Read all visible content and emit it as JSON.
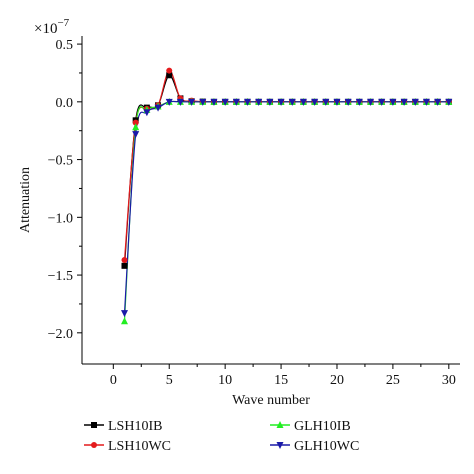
{
  "chart_data": {
    "type": "line",
    "xlabel": "Wave number",
    "ylabel": "Attenuation",
    "y_multiplier_label": "×10",
    "y_multiplier_exp": "−7",
    "xlim": [
      -2.8,
      31
    ],
    "ylim": [
      -2.27,
      0.57
    ],
    "xticks": [
      0,
      5,
      10,
      15,
      20,
      25,
      30
    ],
    "yticks": [
      -2.0,
      -1.5,
      -1.0,
      -0.5,
      0.0,
      0.5
    ],
    "ytick_labels": [
      "−2.0",
      "−1.5",
      "−1.0",
      "−0.5",
      "0.0",
      "0.5"
    ],
    "xtick_labels": [
      "0",
      "5",
      "10",
      "15",
      "20",
      "25",
      "30"
    ],
    "grid": false,
    "legend_position": "bottom",
    "series": [
      {
        "name": "LSH10IB",
        "color": "#000000",
        "marker": "square",
        "x": [
          1,
          2,
          3,
          4,
          5,
          6,
          7,
          8,
          9,
          10,
          11,
          12,
          13,
          14,
          15,
          16,
          17,
          18,
          19,
          20,
          21,
          22,
          23,
          24,
          25,
          26,
          27,
          28,
          29,
          30
        ],
        "y": [
          -1.42,
          -0.16,
          -0.05,
          -0.03,
          0.23,
          0.03,
          0.005,
          0.002,
          0,
          0,
          0,
          0,
          0,
          0,
          0,
          0,
          0,
          0,
          0,
          0,
          0,
          0,
          0,
          0,
          0,
          0,
          0,
          0,
          0,
          0
        ]
      },
      {
        "name": "LSH10WC",
        "color": "#e41a1c",
        "marker": "circle",
        "x": [
          1,
          2,
          3,
          4,
          5,
          6,
          7,
          8,
          9,
          10,
          11,
          12,
          13,
          14,
          15,
          16,
          17,
          18,
          19,
          20,
          21,
          22,
          23,
          24,
          25,
          26,
          27,
          28,
          29,
          30
        ],
        "y": [
          -1.37,
          -0.18,
          -0.06,
          -0.03,
          0.27,
          0.03,
          0.01,
          0.002,
          0,
          0,
          0,
          0,
          0,
          0,
          0,
          0,
          0,
          0,
          0,
          0,
          0,
          0,
          0,
          0,
          0,
          0,
          0,
          0,
          0,
          0
        ]
      },
      {
        "name": "GLH10IB",
        "color": "#22ee22",
        "marker": "triangle-up",
        "x": [
          1,
          2,
          3,
          4,
          5,
          6,
          7,
          8,
          9,
          10,
          11,
          12,
          13,
          14,
          15,
          16,
          17,
          18,
          19,
          20,
          21,
          22,
          23,
          24,
          25,
          26,
          27,
          28,
          29,
          30
        ],
        "y": [
          -1.9,
          -0.22,
          -0.07,
          -0.04,
          0.0,
          0.0,
          0,
          0,
          0,
          0,
          0,
          0,
          0,
          0,
          0,
          0,
          0,
          0,
          0,
          0,
          0,
          0,
          0,
          0,
          0,
          0,
          0,
          0,
          0,
          0
        ]
      },
      {
        "name": "GLH10WC",
        "color": "#1a1aa8",
        "marker": "triangle-down",
        "x": [
          1,
          2,
          3,
          4,
          5,
          6,
          7,
          8,
          9,
          10,
          11,
          12,
          13,
          14,
          15,
          16,
          17,
          18,
          19,
          20,
          21,
          22,
          23,
          24,
          25,
          26,
          27,
          28,
          29,
          30
        ],
        "y": [
          -1.83,
          -0.28,
          -0.09,
          -0.05,
          0.0,
          0.0,
          0,
          0,
          0,
          0,
          0,
          0,
          0,
          0,
          0,
          0,
          0,
          0,
          0,
          0,
          0,
          0,
          0,
          0,
          0,
          0,
          0,
          0,
          0,
          0
        ]
      }
    ]
  }
}
